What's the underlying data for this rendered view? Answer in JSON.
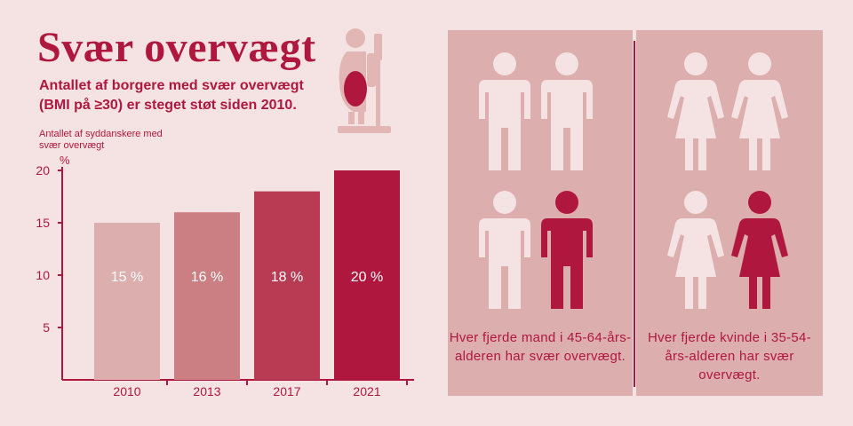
{
  "title": "Svær overvægt",
  "subtitle": "Antallet af borgere med svær overvægt (BMI på ≥30) er steget støt siden 2010.",
  "icons": {
    "scale": "person-on-scale-icon",
    "man": "man-figure-icon",
    "woman": "woman-figure-icon"
  },
  "colors": {
    "accent": "#b0173f",
    "background": "#f4e3e2",
    "panel": "#ddaeae",
    "figure_light": "#f4e3e2",
    "bars": [
      "#dcaeae",
      "#cc7f82",
      "#b93b53",
      "#b0173f"
    ]
  },
  "chart_data": {
    "type": "bar",
    "categories": [
      "2010",
      "2013",
      "2017",
      "2021"
    ],
    "values": [
      15,
      16,
      18,
      20
    ],
    "value_labels": [
      "15 %",
      "16 %",
      "18 %",
      "20 %"
    ],
    "ylabel": "Antallet af syddanskere med svær overvægt",
    "yunit": "%",
    "yticks": [
      5,
      10,
      15,
      20
    ],
    "ylim": [
      0,
      20
    ],
    "grid": false
  },
  "men_panel": {
    "caption": "Hver fjerde mand i 45-64-års-alderen har svær overvægt.",
    "highlighted": 1,
    "total": 4
  },
  "women_panel": {
    "caption": "Hver fjerde kvinde i 35-54-års-alderen har svær overvægt.",
    "highlighted": 1,
    "total": 4
  }
}
